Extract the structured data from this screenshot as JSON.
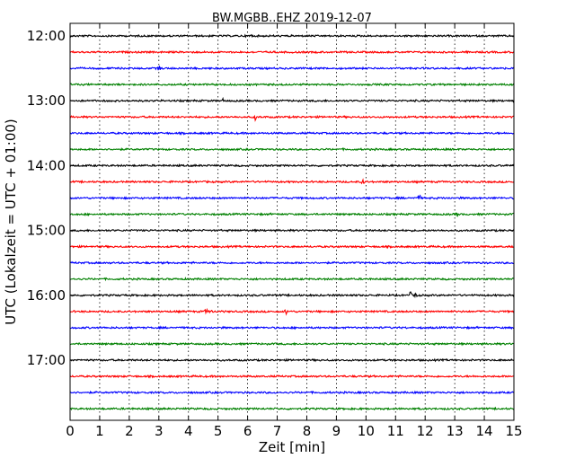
{
  "chart_data": {
    "type": "line",
    "title": "BW.MGBB..EHZ 2019-12-07",
    "xlabel": "Zeit  [min]",
    "ylabel": "UTC (Lokalzeit = UTC + 01:00)",
    "xlim": [
      0,
      15
    ],
    "x_ticks": [
      "0",
      "1",
      "2",
      "3",
      "4",
      "5",
      "6",
      "7",
      "8",
      "9",
      "10",
      "11",
      "12",
      "13",
      "14",
      "15"
    ],
    "y_ticks": [
      "12:00",
      "13:00",
      "14:00",
      "15:00",
      "16:00",
      "17:00"
    ],
    "grid": "vertical dotted",
    "trace_interval_min": 15,
    "trace_colors": [
      "#000000",
      "#ff0000",
      "#0000ff",
      "#008000"
    ],
    "traces": [
      {
        "start": "12:00",
        "color": "#000000",
        "events_min": [
          6.1
        ]
      },
      {
        "start": "12:15",
        "color": "#ff0000",
        "events_min": []
      },
      {
        "start": "12:30",
        "color": "#0000ff",
        "events_min": [
          3.0
        ]
      },
      {
        "start": "12:45",
        "color": "#008000",
        "events_min": []
      },
      {
        "start": "13:00",
        "color": "#000000",
        "events_min": [
          5.2
        ]
      },
      {
        "start": "13:15",
        "color": "#ff0000",
        "events_min": [
          6.25
        ]
      },
      {
        "start": "13:30",
        "color": "#0000ff",
        "events_min": []
      },
      {
        "start": "13:45",
        "color": "#008000",
        "events_min": []
      },
      {
        "start": "14:00",
        "color": "#000000",
        "events_min": []
      },
      {
        "start": "14:15",
        "color": "#ff0000",
        "events_min": [
          9.9
        ]
      },
      {
        "start": "14:30",
        "color": "#0000ff",
        "events_min": [
          11.8
        ]
      },
      {
        "start": "14:45",
        "color": "#008000",
        "events_min": [
          13.1
        ]
      },
      {
        "start": "15:00",
        "color": "#000000",
        "events_min": []
      },
      {
        "start": "15:15",
        "color": "#ff0000",
        "events_min": []
      },
      {
        "start": "15:30",
        "color": "#0000ff",
        "events_min": []
      },
      {
        "start": "15:45",
        "color": "#008000",
        "events_min": []
      },
      {
        "start": "16:00",
        "color": "#000000",
        "events_min": [
          11.5,
          11.7
        ]
      },
      {
        "start": "16:15",
        "color": "#ff0000",
        "events_min": [
          4.6,
          4.75,
          7.3
        ]
      },
      {
        "start": "16:30",
        "color": "#0000ff",
        "events_min": []
      },
      {
        "start": "16:45",
        "color": "#008000",
        "events_min": []
      },
      {
        "start": "17:00",
        "color": "#000000",
        "events_min": []
      },
      {
        "start": "17:15",
        "color": "#ff0000",
        "events_min": []
      },
      {
        "start": "17:30",
        "color": "#0000ff",
        "events_min": []
      },
      {
        "start": "17:45",
        "color": "#008000",
        "events_min": []
      }
    ]
  }
}
